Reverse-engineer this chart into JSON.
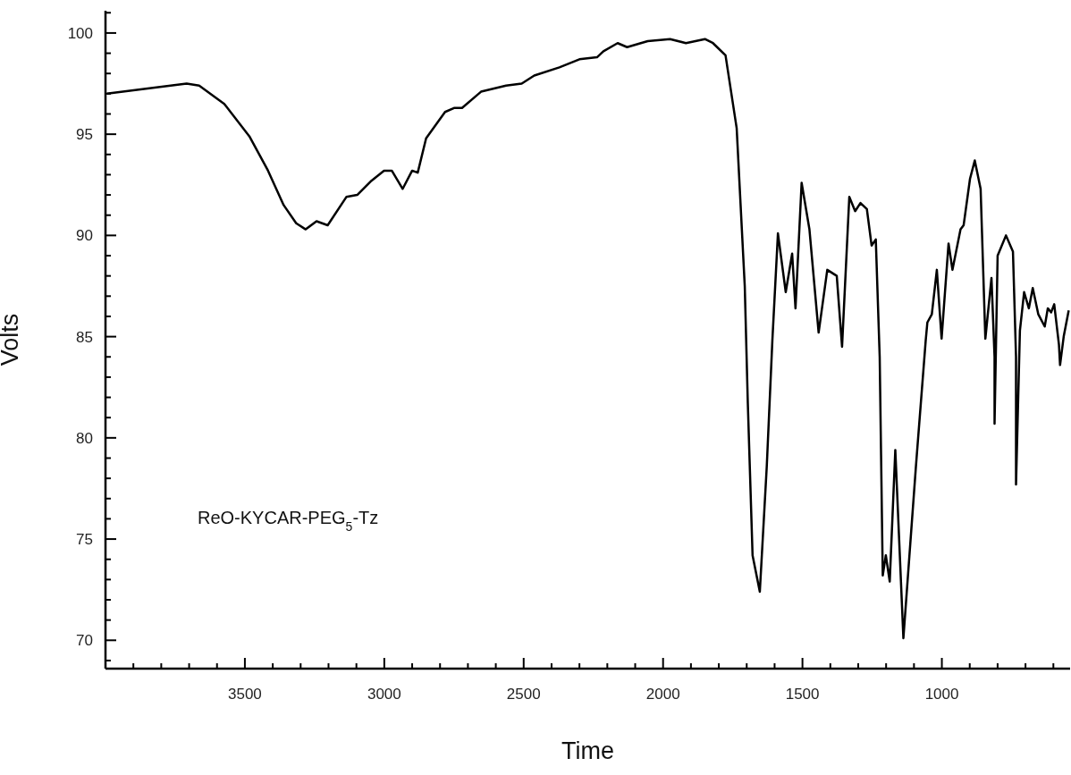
{
  "chart_data": {
    "type": "line",
    "xlabel": "Time",
    "ylabel": "Volts",
    "annotations": [
      "ReO-KYCAR-PEG$_{5}$-Tz"
    ],
    "xlim": [
      4000,
      540
    ],
    "ylim": [
      68.6,
      101.1
    ],
    "xticks": [
      {
        "value": 3900,
        "label": null
      },
      {
        "value": 3800,
        "label": null
      },
      {
        "value": 3700,
        "label": null
      },
      {
        "value": 3600,
        "label": null
      },
      3500,
      {
        "value": 3400,
        "label": null
      },
      {
        "value": 3300,
        "label": null
      },
      {
        "value": 3200,
        "label": null
      },
      {
        "value": 3100,
        "label": null
      },
      3000,
      {
        "value": 2900,
        "label": null
      },
      {
        "value": 2800,
        "label": null
      },
      {
        "value": 2700,
        "label": null
      },
      {
        "value": 2600,
        "label": null
      },
      2500,
      {
        "value": 2400,
        "label": null
      },
      {
        "value": 2300,
        "label": null
      },
      {
        "value": 2200,
        "label": null
      },
      {
        "value": 2100,
        "label": null
      },
      2000,
      {
        "value": 1900,
        "label": null
      },
      {
        "value": 1800,
        "label": null
      },
      {
        "value": 1700,
        "label": null
      },
      {
        "value": 1600,
        "label": null
      },
      1500,
      {
        "value": 1400,
        "label": null
      },
      {
        "value": 1300,
        "label": null
      },
      {
        "value": 1200,
        "label": null
      },
      {
        "value": 1100,
        "label": null
      },
      1000,
      {
        "value": 900,
        "label": null
      },
      {
        "value": 800,
        "label": null
      },
      {
        "value": 700,
        "label": null
      },
      {
        "value": 600,
        "label": null
      }
    ],
    "yticks": [
      {
        "value": 69,
        "label": null
      },
      70,
      {
        "value": 71,
        "label": null
      },
      {
        "value": 72,
        "label": null
      },
      {
        "value": 73,
        "label": null
      },
      {
        "value": 74,
        "label": null
      },
      75,
      {
        "value": 76,
        "label": null
      },
      {
        "value": 77,
        "label": null
      },
      {
        "value": 78,
        "label": null
      },
      {
        "value": 79,
        "label": null
      },
      80,
      {
        "value": 81,
        "label": null
      },
      {
        "value": 82,
        "label": null
      },
      {
        "value": 83,
        "label": null
      },
      {
        "value": 84,
        "label": null
      },
      85,
      {
        "value": 86,
        "label": null
      },
      {
        "value": 87,
        "label": null
      },
      {
        "value": 88,
        "label": null
      },
      {
        "value": 89,
        "label": null
      },
      90,
      {
        "value": 91,
        "label": null
      },
      {
        "value": 92,
        "label": null
      },
      {
        "value": 93,
        "label": null
      },
      {
        "value": 94,
        "label": null
      },
      95,
      {
        "value": 96,
        "label": null
      },
      {
        "value": 97,
        "label": null
      },
      {
        "value": 98,
        "label": null
      },
      {
        "value": 99,
        "label": null
      },
      100,
      {
        "value": 101,
        "label": null
      }
    ],
    "marker": "none",
    "line_style": "solid",
    "series": [
      {
        "color": "#000000",
        "x": [
          3995,
          3709,
          3664,
          3574,
          3484,
          3417,
          3361,
          3316,
          3282,
          3243,
          3203,
          3136,
          3097,
          3046,
          3001,
          2973,
          2934,
          2900,
          2880,
          2850,
          2782,
          2748,
          2721,
          2653,
          2563,
          2507,
          2462,
          2372,
          2300,
          2237,
          2214,
          2163,
          2129,
          2055,
          1975,
          1918,
          1850,
          1821,
          1776,
          1736,
          1707,
          1696,
          1679,
          1653,
          1628,
          1608,
          1588,
          1560,
          1537,
          1525,
          1503,
          1475,
          1442,
          1411,
          1377,
          1358,
          1332,
          1311,
          1292,
          1269,
          1252,
          1237,
          1223,
          1212,
          1201,
          1187,
          1167,
          1138,
          1093,
          1058,
          1052,
          1036,
          1018,
          1001,
          976,
          962,
          933,
          922,
          899,
          882,
          861,
          844,
          822,
          811,
          811,
          800,
          770,
          745,
          734,
          734,
          720,
          705,
          688,
          674,
          654,
          631,
          620,
          608,
          597,
          580,
          576,
          563,
          545
        ],
        "values": [
          97.0,
          97.5,
          97.4,
          96.5,
          94.9,
          93.2,
          91.5,
          90.6,
          90.3,
          90.7,
          90.5,
          91.9,
          92.0,
          92.7,
          93.2,
          93.2,
          92.3,
          93.2,
          93.1,
          94.8,
          96.1,
          96.3,
          96.3,
          97.1,
          97.4,
          97.5,
          97.9,
          98.3,
          98.7,
          98.8,
          99.1,
          99.5,
          99.3,
          99.6,
          99.7,
          99.5,
          99.7,
          99.5,
          98.9,
          95.3,
          87.5,
          81.7,
          74.2,
          72.4,
          78.6,
          84.8,
          90.1,
          87.2,
          89.1,
          86.4,
          92.6,
          90.3,
          85.2,
          88.3,
          88.0,
          84.5,
          91.9,
          91.2,
          91.6,
          91.3,
          89.5,
          89.8,
          84.0,
          73.2,
          74.2,
          72.9,
          79.4,
          70.1,
          78.6,
          84.8,
          85.7,
          86.1,
          88.3,
          84.9,
          89.6,
          88.3,
          90.3,
          90.5,
          92.8,
          93.7,
          92.3,
          84.9,
          87.9,
          84.0,
          80.7,
          89.0,
          90.0,
          89.2,
          84.0,
          77.7,
          85.3,
          87.2,
          86.4,
          87.4,
          86.1,
          85.5,
          86.4,
          86.2,
          86.6,
          84.6,
          83.6,
          85.0,
          86.3
        ]
      }
    ]
  }
}
